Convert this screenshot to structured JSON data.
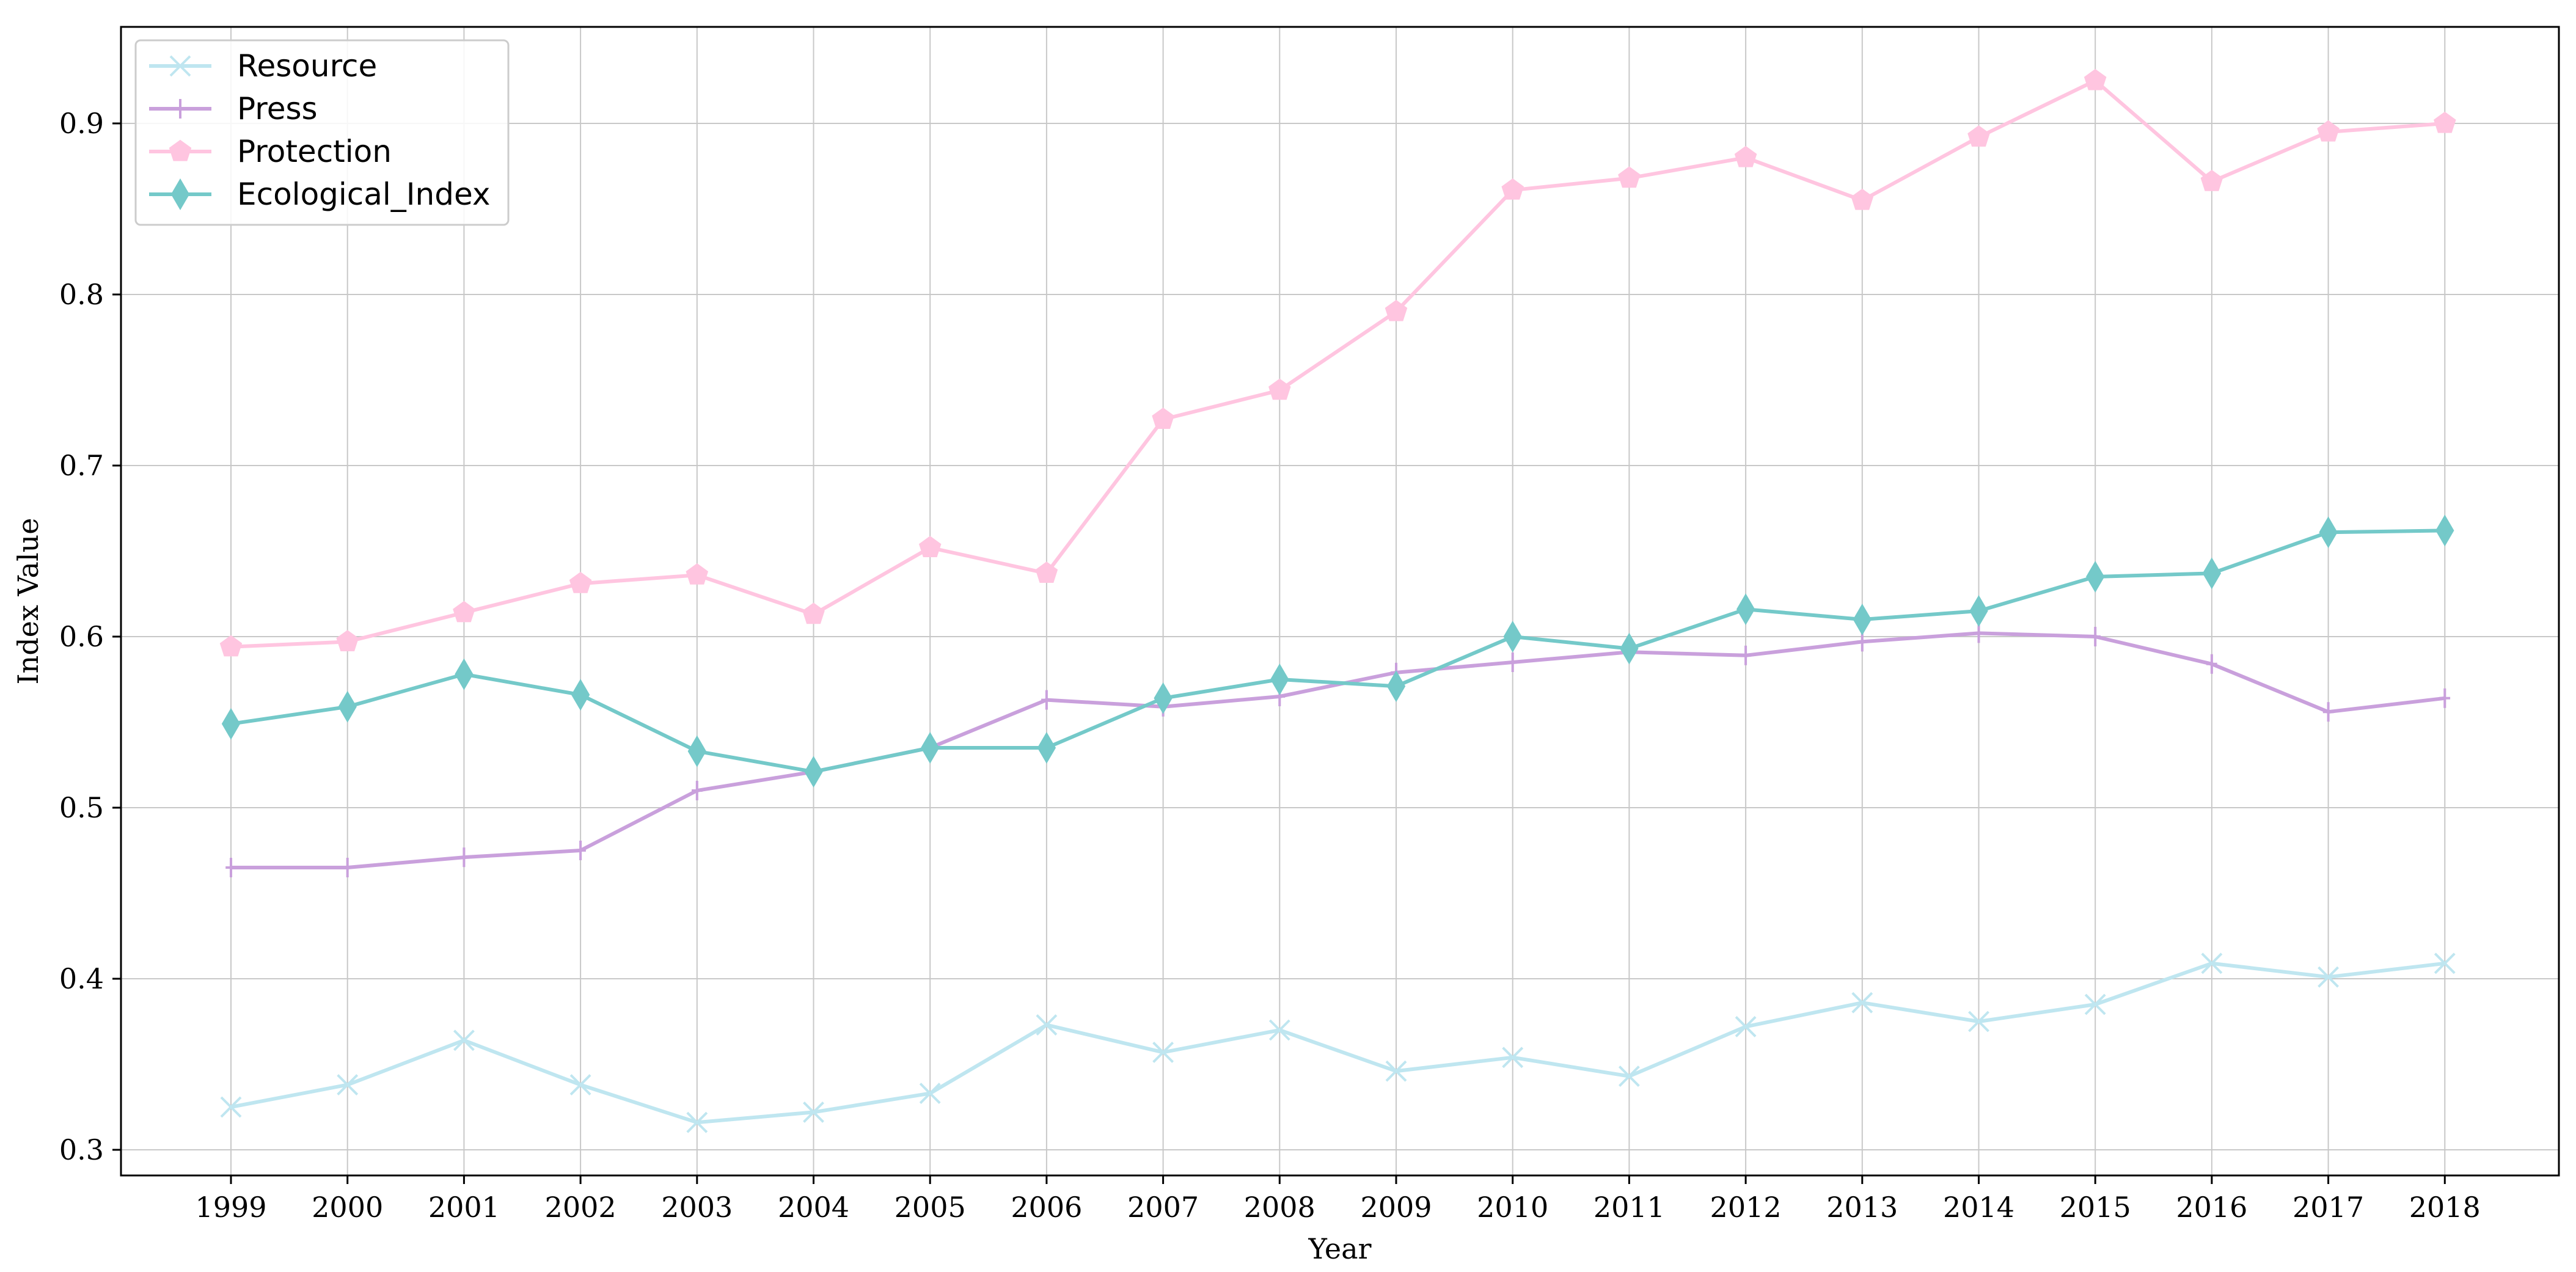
{
  "chart_data": {
    "type": "line",
    "title": "",
    "xlabel": "Year",
    "ylabel": "Index Value",
    "x": [
      "1999",
      "2000",
      "2001",
      "2002",
      "2003",
      "2004",
      "2005",
      "2006",
      "2007",
      "2008",
      "2009",
      "2010",
      "2011",
      "2012",
      "2013",
      "2014",
      "2015",
      "2016",
      "2017",
      "2018"
    ],
    "yticks": [
      "0.3",
      "0.4",
      "0.5",
      "0.6",
      "0.7",
      "0.8",
      "0.9"
    ],
    "ylim": [
      0.29,
      0.955
    ],
    "grid": true,
    "legend_position": "top-left",
    "series": [
      {
        "name": "Resource",
        "color": "#bfe6f0",
        "marker": "x",
        "values": [
          0.325,
          0.338,
          0.364,
          0.338,
          0.316,
          0.322,
          0.333,
          0.373,
          0.357,
          0.37,
          0.346,
          0.354,
          0.343,
          0.372,
          0.386,
          0.375,
          0.385,
          0.409,
          0.401,
          0.409
        ]
      },
      {
        "name": "Press",
        "color": "#c9a0dc",
        "marker": "plus",
        "values": [
          0.465,
          0.465,
          0.471,
          0.475,
          0.51,
          0.521,
          0.535,
          0.563,
          0.559,
          0.565,
          0.579,
          0.585,
          0.591,
          0.589,
          0.597,
          0.602,
          0.6,
          0.584,
          0.556,
          0.564
        ]
      },
      {
        "name": "Protection",
        "color": "#ffc5e0",
        "marker": "pentagon",
        "values": [
          0.594,
          0.597,
          0.614,
          0.631,
          0.636,
          0.613,
          0.652,
          0.637,
          0.727,
          0.744,
          0.79,
          0.861,
          0.868,
          0.88,
          0.855,
          0.892,
          0.925,
          0.866,
          0.895,
          0.9
        ]
      },
      {
        "name": "Ecological_Index",
        "color": "#74c9c9",
        "marker": "diamond",
        "values": [
          0.549,
          0.559,
          0.578,
          0.566,
          0.533,
          0.521,
          0.535,
          0.535,
          0.564,
          0.575,
          0.571,
          0.6,
          0.593,
          0.616,
          0.61,
          0.615,
          0.635,
          0.637,
          0.661,
          0.662
        ]
      }
    ]
  }
}
